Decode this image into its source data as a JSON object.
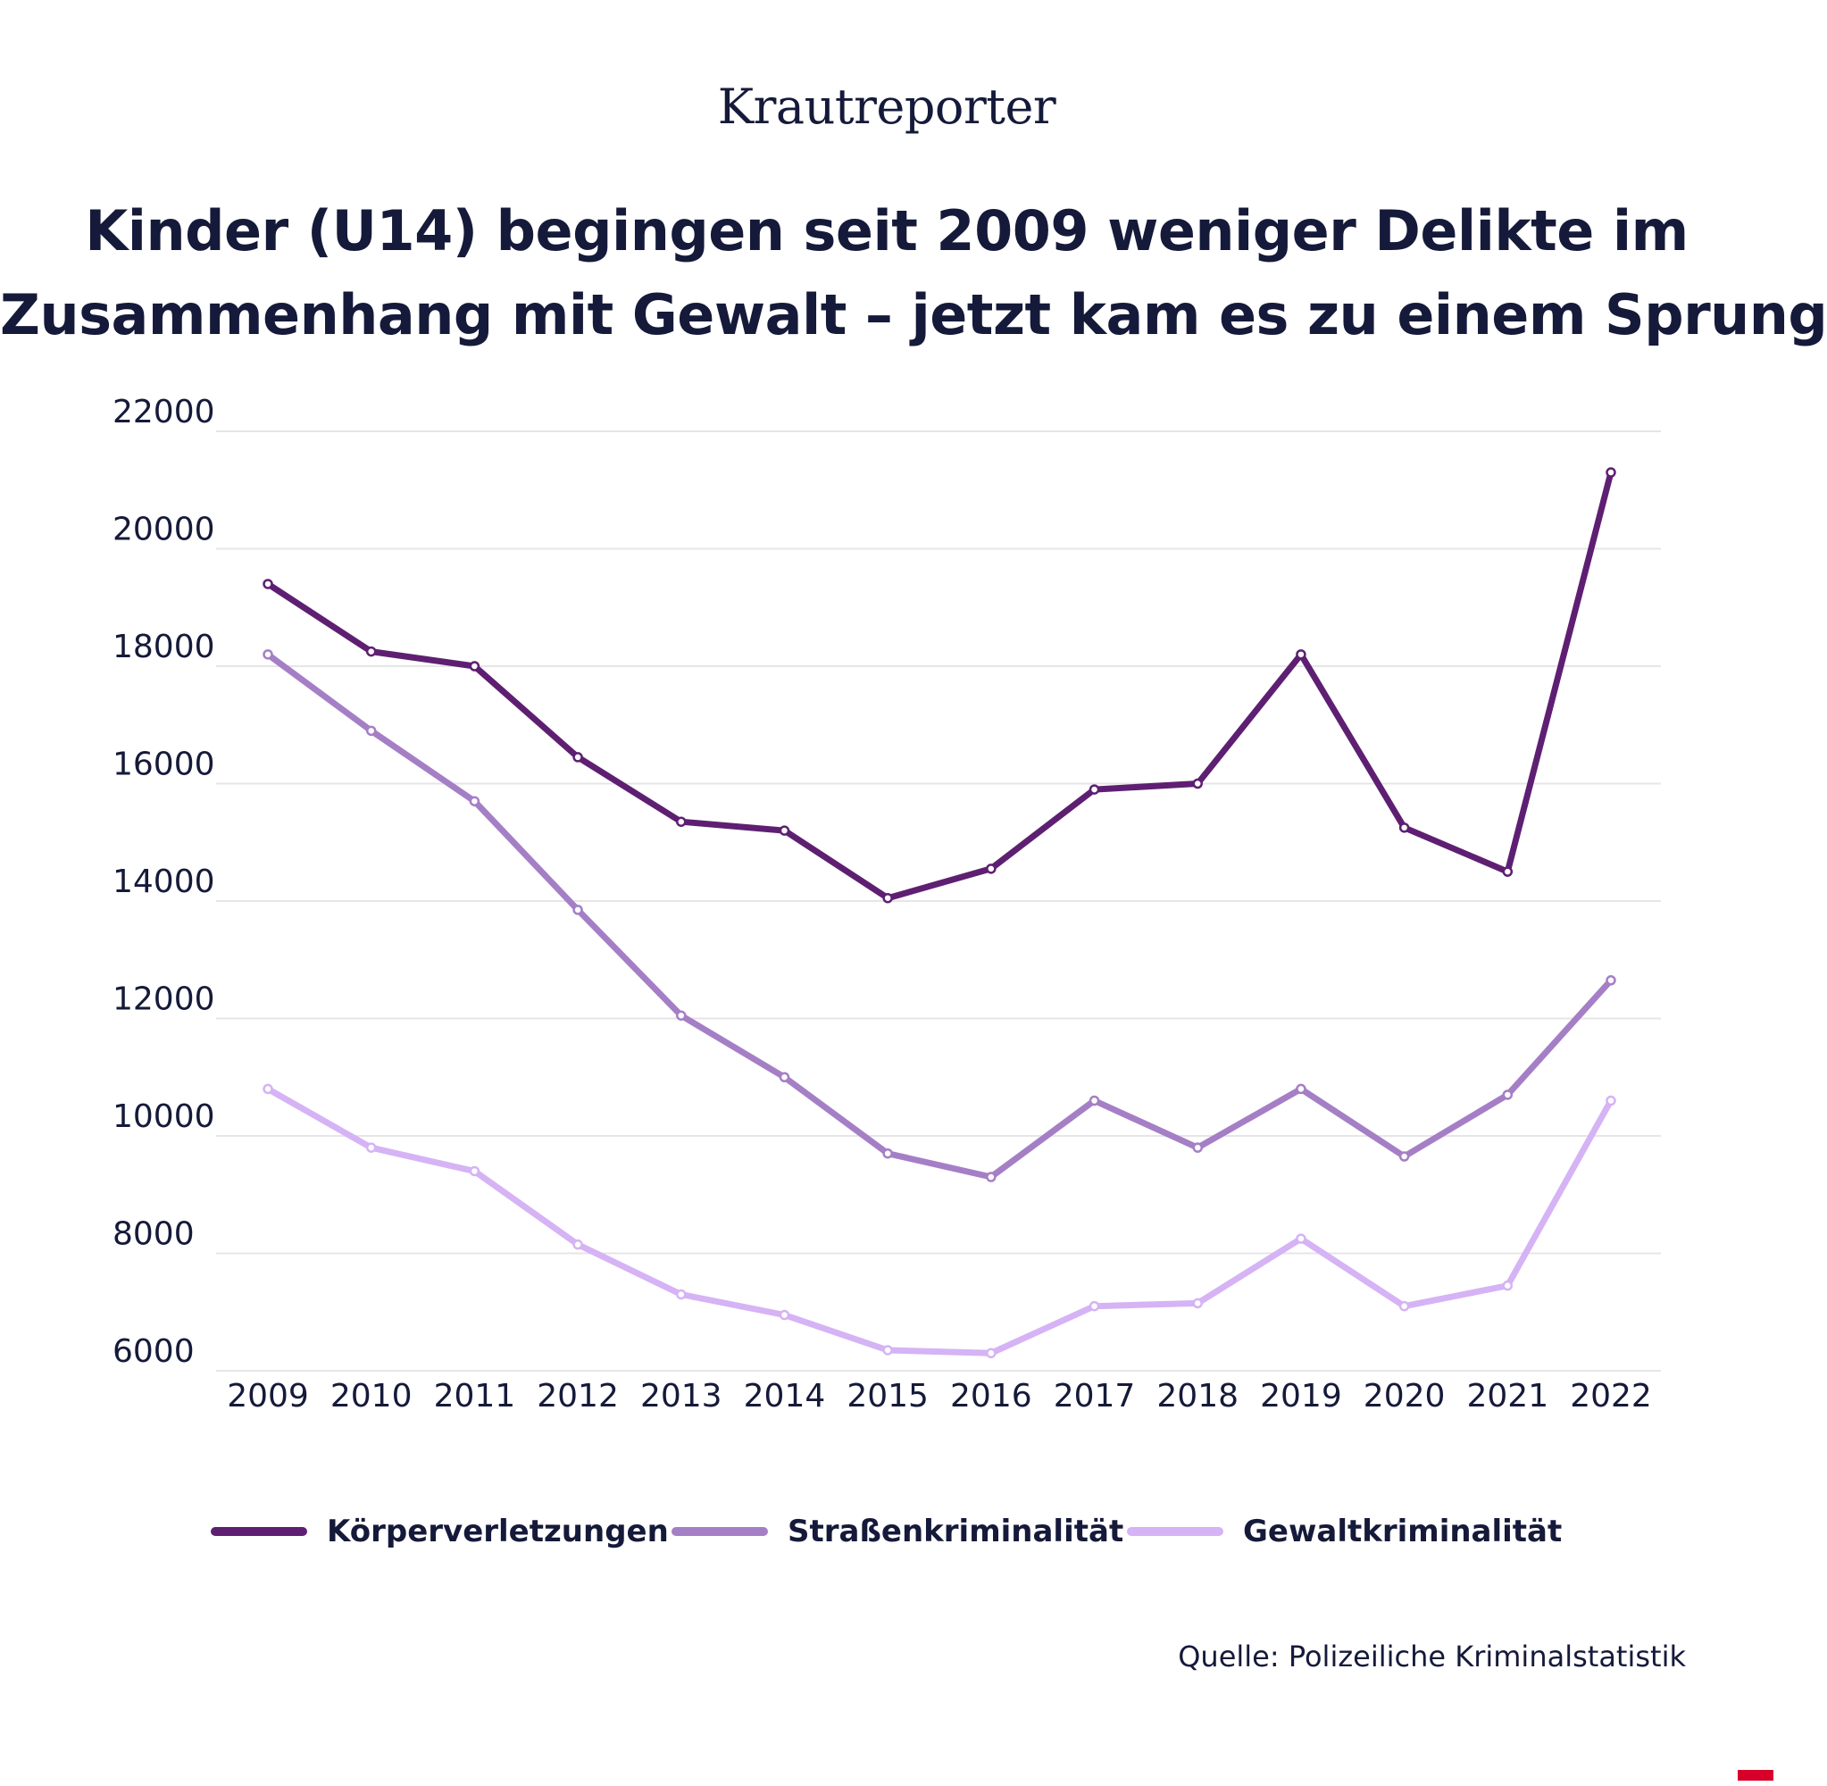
{
  "brand": "Krautreporter",
  "title_line1": "Kinder (U14) begingen seit 2009 weniger Delikte im",
  "title_line2": "Zusammenhang mit Gewalt – jetzt kam es zu einem Sprung",
  "source": "Quelle: Polizeiliche Kriminalstatistik",
  "colors": {
    "text": "#151a3a",
    "grid": "#e6e6e6"
  },
  "chart_data": {
    "type": "line",
    "title": "Kinder (U14) begingen seit 2009 weniger Delikte im Zusammenhang mit Gewalt – jetzt kam es zu einem Sprung",
    "x": [
      "2009",
      "2010",
      "2011",
      "2012",
      "2013",
      "2014",
      "2015",
      "2016",
      "2017",
      "2018",
      "2019",
      "2020",
      "2021",
      "2022"
    ],
    "ylim": [
      6000,
      22000
    ],
    "yticks": [
      6000,
      8000,
      10000,
      12000,
      14000,
      16000,
      18000,
      20000,
      22000
    ],
    "grid": true,
    "legend_position": "bottom",
    "series": [
      {
        "name": "Körperverletzungen",
        "color": "#5e1f72",
        "values": [
          19400,
          18250,
          18000,
          16450,
          15350,
          15200,
          14050,
          14550,
          15900,
          16000,
          18200,
          15250,
          14500,
          21300
        ]
      },
      {
        "name": "Straßenkriminalität",
        "color": "#a57fc6",
        "values": [
          18200,
          16900,
          15700,
          13850,
          12050,
          11000,
          9700,
          9300,
          10600,
          9800,
          10800,
          9650,
          10700,
          12650
        ]
      },
      {
        "name": "Gewaltkriminalität",
        "color": "#d5b3f5",
        "values": [
          10800,
          9800,
          9400,
          8150,
          7300,
          6950,
          6350,
          6300,
          7100,
          7150,
          8250,
          7100,
          7450,
          10600
        ]
      }
    ]
  }
}
